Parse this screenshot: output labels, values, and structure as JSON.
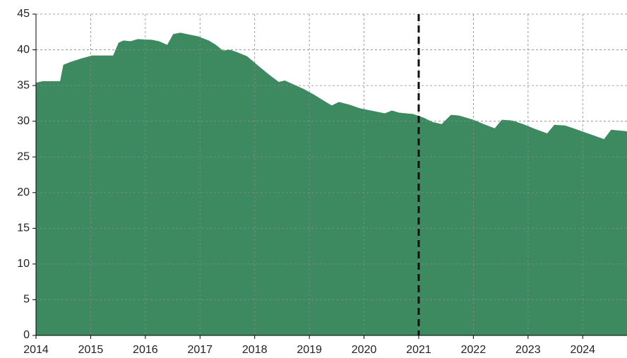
{
  "chart_data": {
    "type": "area",
    "x": [
      2014.0,
      2014.12,
      2014.44,
      2014.5,
      2014.63,
      2014.83,
      2015.02,
      2015.41,
      2015.51,
      2015.6,
      2015.73,
      2015.86,
      2016.12,
      2016.25,
      2016.4,
      2016.51,
      2016.64,
      2016.76,
      2016.96,
      2017.16,
      2017.29,
      2017.42,
      2017.55,
      2017.67,
      2017.86,
      2018.06,
      2018.25,
      2018.44,
      2018.55,
      2018.7,
      2018.9,
      2019.09,
      2019.28,
      2019.41,
      2019.54,
      2019.74,
      2019.93,
      2020.19,
      2020.38,
      2020.51,
      2020.64,
      2020.9,
      2021.09,
      2021.25,
      2021.42,
      2021.59,
      2021.74,
      2022.0,
      2022.19,
      2022.39,
      2022.52,
      2022.71,
      2022.91,
      2023.1,
      2023.35,
      2023.48,
      2023.68,
      2023.87,
      2024.13,
      2024.39,
      2024.52,
      2024.81
    ],
    "series": [
      {
        "color": "#3d8a60",
        "values": [
          35.4,
          35.6,
          35.6,
          37.9,
          38.3,
          38.8,
          39.2,
          39.2,
          41.0,
          41.3,
          41.2,
          41.5,
          41.4,
          41.2,
          40.7,
          42.2,
          42.4,
          42.2,
          41.9,
          41.3,
          40.7,
          39.9,
          40.0,
          39.7,
          39.1,
          37.8,
          36.6,
          35.5,
          35.7,
          35.2,
          34.5,
          33.7,
          32.8,
          32.2,
          32.7,
          32.3,
          31.8,
          31.4,
          31.1,
          31.5,
          31.2,
          31.0,
          30.5,
          29.9,
          29.6,
          30.9,
          30.8,
          30.2,
          29.6,
          29.0,
          30.2,
          30.1,
          29.6,
          29.0,
          28.3,
          29.5,
          29.4,
          28.9,
          28.2,
          27.5,
          28.8,
          28.6
        ]
      }
    ],
    "xlim": [
      2014,
      2024.81
    ],
    "xticks": [
      2014,
      2015,
      2016,
      2017,
      2018,
      2019,
      2020,
      2021,
      2022,
      2023,
      2024
    ],
    "ylim": [
      0,
      45
    ],
    "yticks": [
      0,
      5,
      10,
      15,
      20,
      25,
      30,
      35,
      40,
      45
    ],
    "grid": true,
    "vline": 2021
  }
}
